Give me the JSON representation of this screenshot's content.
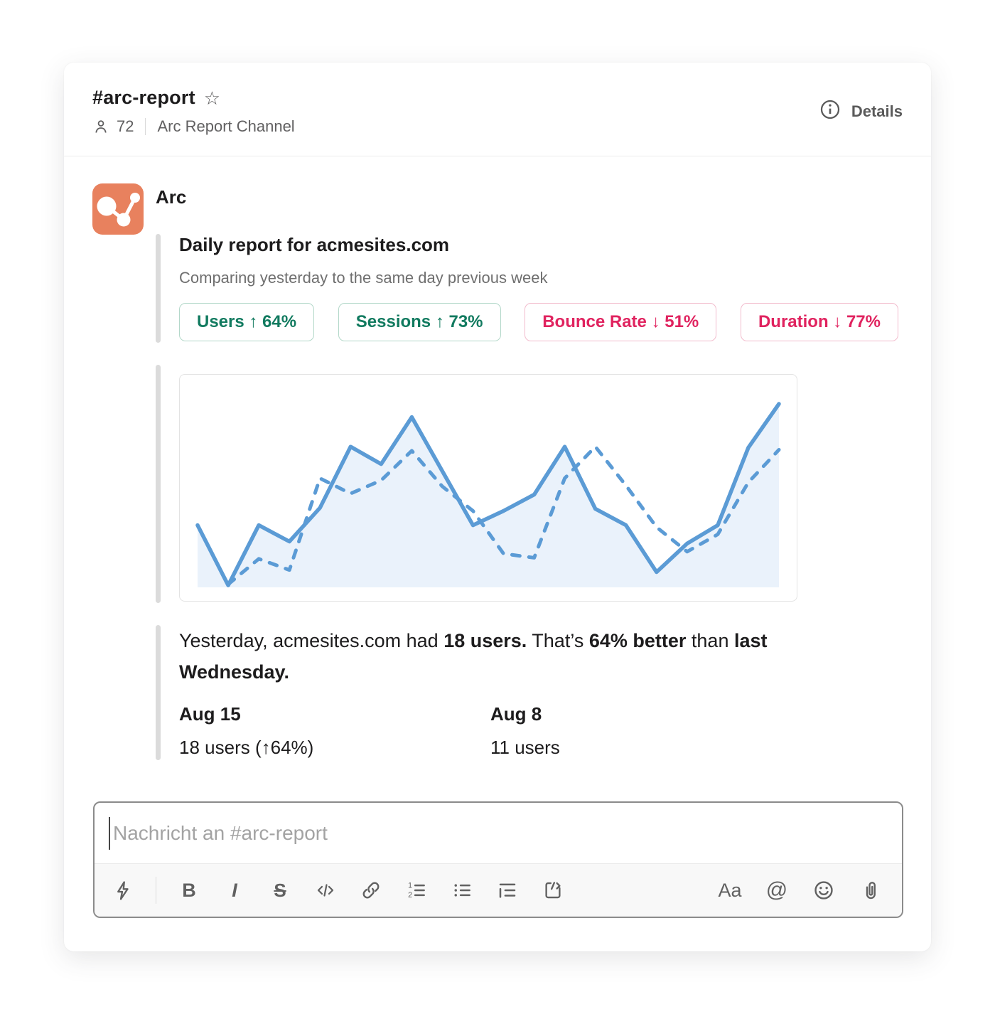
{
  "header": {
    "channel": "#arc-report",
    "members_count": "72",
    "topic": "Arc Report Channel",
    "details_label": "Details"
  },
  "icons": {
    "star_glyph": "☆"
  },
  "message": {
    "sender": "Arc",
    "report": {
      "title": "Daily report for acmesites.com",
      "subtitle": "Comparing yesterday to the same day previous week",
      "badges": [
        {
          "label": "Users",
          "arrow": "↑",
          "value": "64%",
          "direction": "up"
        },
        {
          "label": "Sessions",
          "arrow": "↑",
          "value": "73%",
          "direction": "up"
        },
        {
          "label": "Bounce Rate",
          "arrow": "↓",
          "value": "51%",
          "direction": "down"
        },
        {
          "label": "Duration",
          "arrow": "↓",
          "value": "77%",
          "direction": "down"
        }
      ]
    },
    "summary": {
      "segments": [
        {
          "text": "Yesterday, acmesites.com had ",
          "bold": false
        },
        {
          "text": "18 users.",
          "bold": true
        },
        {
          "text": " That’s ",
          "bold": false
        },
        {
          "text": "64% better",
          "bold": true
        },
        {
          "text": " than ",
          "bold": false
        },
        {
          "text": "last Wednesday.",
          "bold": true
        }
      ],
      "columns": [
        {
          "date": "Aug 15",
          "value": "18 users (↑64%)"
        },
        {
          "date": "Aug 8",
          "value": "11 users"
        }
      ]
    }
  },
  "chart_data": {
    "type": "line",
    "title": "",
    "xlabel": "",
    "ylabel": "",
    "axes_visible": false,
    "grid": false,
    "legend": "none",
    "x": [
      1,
      2,
      3,
      4,
      5,
      6,
      7,
      8,
      9,
      10,
      11,
      12,
      13,
      14,
      15,
      16,
      17,
      18,
      19,
      20
    ],
    "ylim": [
      0,
      19.5
    ],
    "units": "users (estimated from line heights; yesterday = 18 users)",
    "series": [
      {
        "name": "current-week-users",
        "style": "solid-with-area",
        "values": [
          6.1,
          0.2,
          6.1,
          4.5,
          7.8,
          13.8,
          12.1,
          16.7,
          11.4,
          6.1,
          7.5,
          9.1,
          13.8,
          7.7,
          6.1,
          1.5,
          4.3,
          6.1,
          13.7,
          18.0
        ]
      },
      {
        "name": "previous-week-users",
        "style": "dashed",
        "values": [
          null,
          0.3,
          2.8,
          1.7,
          10.7,
          9.2,
          10.5,
          13.4,
          9.9,
          7.5,
          3.3,
          2.9,
          10.7,
          13.8,
          10.0,
          5.9,
          3.5,
          5.2,
          10.3,
          13.5
        ]
      }
    ]
  },
  "composer": {
    "placeholder": "Nachricht an #arc-report",
    "labels": {
      "bold": "B",
      "italic": "I",
      "strikethrough": "S",
      "text_format": "Aa",
      "mention": "@"
    },
    "toolbar_left_icons": [
      "shortcuts-lightning",
      "bold",
      "italic",
      "strikethrough",
      "code",
      "link",
      "ordered-list",
      "bulleted-list",
      "blockquote",
      "code-block"
    ],
    "toolbar_right_icons": [
      "text-format",
      "mention",
      "emoji",
      "attach-paperclip"
    ]
  },
  "colors": {
    "accent_orange": "#E8815E",
    "positive": "#117A5F",
    "positive_border": "#B3D8C9",
    "negative": "#E0235F",
    "negative_border": "#F2BCCD",
    "chart_line": "#5B9BD5",
    "chart_fill": "#EAF2FB"
  }
}
